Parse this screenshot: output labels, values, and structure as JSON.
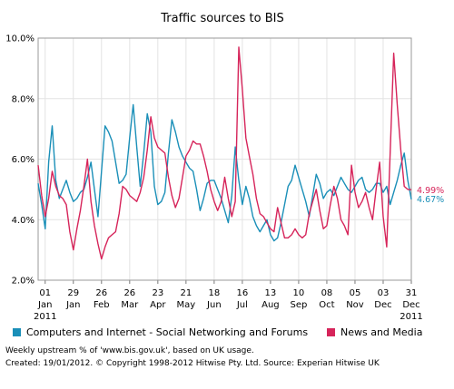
{
  "chart_data": {
    "type": "line",
    "title": "Traffic sources to BIS",
    "ylim": [
      2.0,
      10.0
    ],
    "yticks": [
      "2.0%",
      "4.0%",
      "6.0%",
      "8.0%",
      "10.0%"
    ],
    "ytick_values": [
      2,
      4,
      6,
      8,
      10
    ],
    "xticks": [
      {
        "line1": "01",
        "line2": "Jan",
        "line3": "2011"
      },
      {
        "line1": "29",
        "line2": "Jan",
        "line3": ""
      },
      {
        "line1": "26",
        "line2": "Feb",
        "line3": ""
      },
      {
        "line1": "26",
        "line2": "Mar",
        "line3": ""
      },
      {
        "line1": "23",
        "line2": "Apr",
        "line3": ""
      },
      {
        "line1": "21",
        "line2": "May",
        "line3": ""
      },
      {
        "line1": "18",
        "line2": "Jun",
        "line3": ""
      },
      {
        "line1": "16",
        "line2": "Jul",
        "line3": ""
      },
      {
        "line1": "13",
        "line2": "Aug",
        "line3": ""
      },
      {
        "line1": "10",
        "line2": "Sep",
        "line3": ""
      },
      {
        "line1": "08",
        "line2": "Oct",
        "line3": ""
      },
      {
        "line1": "05",
        "line2": "Nov",
        "line3": ""
      },
      {
        "line1": "03",
        "line2": "Dec",
        "line3": ""
      },
      {
        "line1": "31",
        "line2": "Dec",
        "line3": "2011"
      }
    ],
    "xtick_index": [
      2,
      10,
      18,
      26,
      34,
      42,
      50,
      58,
      66,
      74,
      82,
      90,
      98,
      106
    ],
    "n_points": 107,
    "series": [
      {
        "name": "Computers and Internet - Social Networking and Forums",
        "color": "#1a8fb8",
        "end_label": "4.67%",
        "values": [
          5.2,
          4.5,
          3.7,
          5.9,
          7.1,
          5.3,
          4.7,
          5.0,
          5.3,
          4.9,
          4.6,
          4.7,
          4.9,
          5.0,
          5.4,
          5.9,
          5.0,
          4.1,
          5.6,
          7.1,
          6.9,
          6.6,
          5.9,
          5.2,
          5.3,
          5.5,
          6.7,
          7.8,
          6.4,
          5.1,
          6.2,
          7.5,
          6.9,
          5.1,
          4.5,
          4.6,
          4.9,
          6.2,
          7.3,
          6.9,
          6.4,
          6.1,
          5.9,
          5.7,
          5.6,
          5.0,
          4.3,
          4.7,
          5.2,
          5.3,
          5.3,
          5.0,
          4.7,
          4.3,
          3.9,
          4.8,
          6.4,
          5.3,
          4.5,
          5.1,
          4.7,
          4.1,
          3.8,
          3.6,
          3.8,
          4.0,
          3.5,
          3.3,
          3.4,
          3.9,
          4.5,
          5.1,
          5.3,
          5.8,
          5.4,
          5.0,
          4.6,
          4.1,
          4.8,
          5.5,
          5.2,
          4.7,
          4.9,
          5.0,
          4.8,
          5.1,
          5.4,
          5.2,
          5.0,
          4.9,
          5.1,
          5.3,
          5.4,
          5.0,
          4.9,
          5.0,
          5.2,
          5.2,
          4.9,
          5.1,
          4.5,
          4.9,
          5.3,
          5.8,
          6.2,
          5.3,
          4.67
        ]
      },
      {
        "name": "News and Media",
        "color": "#d6245a",
        "end_label": "4.99%",
        "values": [
          5.8,
          4.8,
          4.1,
          4.7,
          5.6,
          5.1,
          4.8,
          4.7,
          4.5,
          3.6,
          3.0,
          3.7,
          4.3,
          5.1,
          6.0,
          4.6,
          3.8,
          3.2,
          2.7,
          3.1,
          3.4,
          3.5,
          3.6,
          4.2,
          5.1,
          5.0,
          4.8,
          4.7,
          4.6,
          4.9,
          5.4,
          6.3,
          7.4,
          6.7,
          6.4,
          6.3,
          6.2,
          5.4,
          4.8,
          4.4,
          4.7,
          5.4,
          6.1,
          6.3,
          6.6,
          6.5,
          6.5,
          6.1,
          5.6,
          5.0,
          4.6,
          4.3,
          4.6,
          5.4,
          4.7,
          4.1,
          4.6,
          9.7,
          8.3,
          6.7,
          6.1,
          5.5,
          4.7,
          4.2,
          4.1,
          3.9,
          3.7,
          3.6,
          4.4,
          3.9,
          3.4,
          3.4,
          3.5,
          3.7,
          3.5,
          3.4,
          3.5,
          4.2,
          4.6,
          5.0,
          4.3,
          3.7,
          3.8,
          4.5,
          5.1,
          4.7,
          4.0,
          3.8,
          3.5,
          5.8,
          4.9,
          4.4,
          4.6,
          4.9,
          4.4,
          4.0,
          5.0,
          5.9,
          4.1,
          3.1,
          6.2,
          9.5,
          7.8,
          6.3,
          5.1,
          5.0,
          4.99
        ]
      }
    ],
    "grid": true,
    "legend_position": "bottom"
  },
  "legend": {
    "item1": "Computers and Internet - Social Networking and Forums",
    "item2": "News and Media"
  },
  "footer": {
    "line1": "Weekly upstream % of 'www.bis.gov.uk', based on UK usage.",
    "line2": "Created: 19/01/2012. © Copyright 1998-2012 Hitwise Pty. Ltd.    Source: Experian Hitwise UK"
  }
}
